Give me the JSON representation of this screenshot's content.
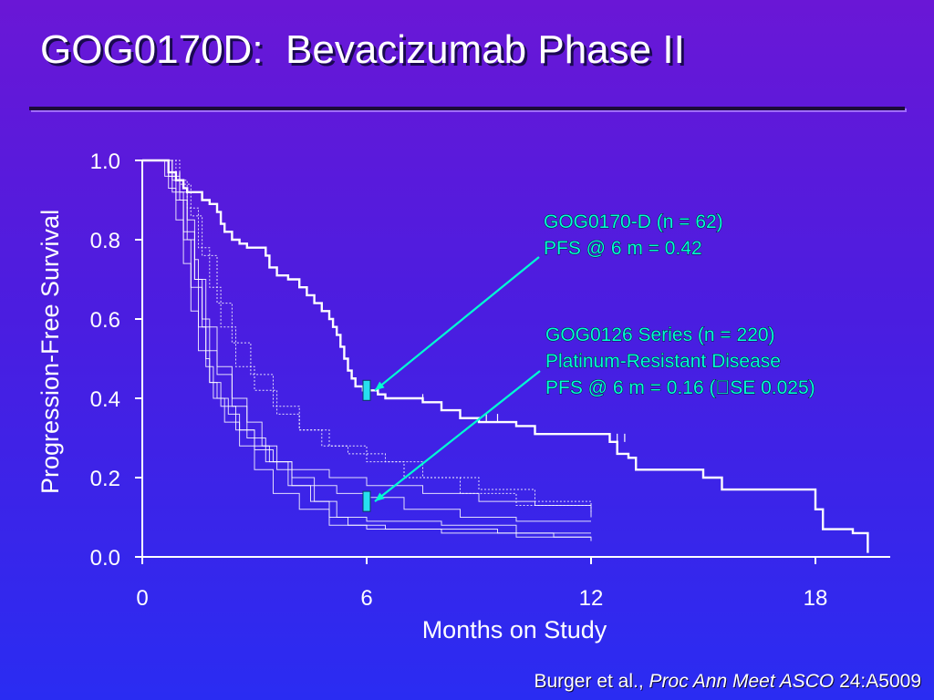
{
  "slide": {
    "title": "GOG0170D:  Bevacizumab Phase II",
    "citation": {
      "authors": "Burger et al.,",
      "journal": "Proc Ann Meet ASCO",
      "ref": "24:A5009"
    }
  },
  "colors": {
    "background_top": "#6a17d6",
    "background_bottom": "#2a2cf2",
    "annotation_text": "#00ffd2",
    "arrow": "#00ffd2",
    "marker": "#27e0f0",
    "curve": "#ffffff"
  },
  "chart_data": {
    "type": "line",
    "title": "",
    "xlabel": "Months on Study",
    "ylabel": "Progression-Free Survival",
    "xlim": [
      0,
      20
    ],
    "ylim": [
      0,
      1.0
    ],
    "xticks": [
      0,
      6,
      12,
      18
    ],
    "yticks": [
      0.0,
      0.2,
      0.4,
      0.6,
      0.8,
      1.0
    ],
    "ytick_labels": [
      "0.0",
      "0.2",
      "0.4",
      "0.6",
      "0.8",
      "1.0"
    ],
    "annotations": [
      {
        "lines": [
          "GOG0170-D (n = 62)",
          "PFS @ 6 m = 0.42"
        ],
        "target": [
          6,
          0.42
        ]
      },
      {
        "lines": [
          "GOG0126 Series (n = 220)",
          "Platinum-Resistant Disease",
          "PFS @ 6 m = 0.16 (SE 0.025)"
        ],
        "target": [
          6,
          0.14
        ]
      }
    ],
    "series": [
      {
        "role": "GOG0170-D",
        "emphasis": true,
        "points": [
          [
            0,
            1.0
          ],
          [
            0.6,
            1.0
          ],
          [
            0.7,
            0.97
          ],
          [
            0.9,
            0.95
          ],
          [
            1.1,
            0.93
          ],
          [
            1.2,
            0.92
          ],
          [
            1.5,
            0.92
          ],
          [
            1.6,
            0.9
          ],
          [
            1.8,
            0.89
          ],
          [
            2.0,
            0.87
          ],
          [
            2.1,
            0.84
          ],
          [
            2.2,
            0.82
          ],
          [
            2.4,
            0.8
          ],
          [
            2.6,
            0.79
          ],
          [
            2.8,
            0.78
          ],
          [
            3.3,
            0.76
          ],
          [
            3.4,
            0.73
          ],
          [
            3.6,
            0.71
          ],
          [
            3.9,
            0.7
          ],
          [
            4.2,
            0.68
          ],
          [
            4.4,
            0.66
          ],
          [
            4.6,
            0.64
          ],
          [
            4.8,
            0.62
          ],
          [
            5.0,
            0.6
          ],
          [
            5.1,
            0.58
          ],
          [
            5.2,
            0.56
          ],
          [
            5.3,
            0.53
          ],
          [
            5.4,
            0.5
          ],
          [
            5.5,
            0.47
          ],
          [
            5.6,
            0.45
          ],
          [
            5.7,
            0.43
          ],
          [
            5.9,
            0.42
          ],
          [
            6.2,
            0.42
          ],
          [
            6.3,
            0.41
          ],
          [
            6.5,
            0.4
          ],
          [
            7.5,
            0.39
          ],
          [
            8.0,
            0.37
          ],
          [
            8.5,
            0.35
          ],
          [
            9.0,
            0.34
          ],
          [
            10.0,
            0.33
          ],
          [
            10.5,
            0.31
          ],
          [
            12.5,
            0.29
          ],
          [
            12.7,
            0.26
          ],
          [
            13.0,
            0.25
          ],
          [
            13.2,
            0.22
          ],
          [
            15.0,
            0.2
          ],
          [
            15.5,
            0.17
          ],
          [
            17.9,
            0.17
          ],
          [
            18.0,
            0.12
          ],
          [
            18.2,
            0.07
          ],
          [
            19.0,
            0.06
          ],
          [
            19.4,
            0.05
          ],
          [
            19.4,
            0.01
          ]
        ],
        "censors": [
          [
            1.0,
            0.95
          ],
          [
            7.5,
            0.39
          ],
          [
            8.5,
            0.35
          ],
          [
            9.2,
            0.34
          ],
          [
            9.5,
            0.34
          ],
          [
            10.5,
            0.31
          ],
          [
            12.5,
            0.29
          ],
          [
            12.7,
            0.29
          ],
          [
            12.9,
            0.29
          ]
        ]
      },
      {
        "role": "GOG0126",
        "dash": false,
        "points": [
          [
            0,
            1.0
          ],
          [
            0.7,
            0.96
          ],
          [
            1.0,
            0.92
          ],
          [
            1.2,
            0.85
          ],
          [
            1.4,
            0.75
          ],
          [
            1.5,
            0.68
          ],
          [
            1.6,
            0.58
          ],
          [
            1.7,
            0.5
          ],
          [
            1.8,
            0.44
          ],
          [
            2.0,
            0.4
          ],
          [
            2.3,
            0.36
          ],
          [
            2.6,
            0.32
          ],
          [
            3.0,
            0.28
          ],
          [
            3.4,
            0.24
          ],
          [
            4.0,
            0.2
          ],
          [
            4.6,
            0.18
          ],
          [
            5.2,
            0.16
          ],
          [
            6.0,
            0.15
          ],
          [
            7.0,
            0.12
          ],
          [
            8.5,
            0.1
          ],
          [
            10.0,
            0.09
          ],
          [
            12.0,
            0.09
          ]
        ]
      },
      {
        "role": "GOG0126",
        "dash": false,
        "points": [
          [
            0,
            1.0
          ],
          [
            0.8,
            0.95
          ],
          [
            1.0,
            0.9
          ],
          [
            1.2,
            0.8
          ],
          [
            1.4,
            0.7
          ],
          [
            1.6,
            0.6
          ],
          [
            1.8,
            0.52
          ],
          [
            2.0,
            0.46
          ],
          [
            2.4,
            0.4
          ],
          [
            2.8,
            0.34
          ],
          [
            3.2,
            0.28
          ],
          [
            3.6,
            0.22
          ],
          [
            4.0,
            0.18
          ],
          [
            4.6,
            0.14
          ],
          [
            5.2,
            0.1
          ],
          [
            6.0,
            0.09
          ],
          [
            8.0,
            0.08
          ],
          [
            10.0,
            0.06
          ],
          [
            12.0,
            0.06
          ]
        ]
      },
      {
        "role": "GOG0126",
        "dash": true,
        "points": [
          [
            0,
            1.0
          ],
          [
            0.9,
            0.95
          ],
          [
            1.2,
            0.88
          ],
          [
            1.5,
            0.78
          ],
          [
            1.8,
            0.68
          ],
          [
            2.1,
            0.58
          ],
          [
            2.5,
            0.48
          ],
          [
            3.0,
            0.42
          ],
          [
            3.6,
            0.36
          ],
          [
            4.2,
            0.32
          ],
          [
            4.8,
            0.28
          ],
          [
            5.5,
            0.26
          ],
          [
            6.5,
            0.24
          ],
          [
            7.5,
            0.2
          ],
          [
            9.0,
            0.17
          ],
          [
            10.5,
            0.14
          ],
          [
            12.0,
            0.12
          ]
        ]
      },
      {
        "role": "GOG0126",
        "dash": false,
        "points": [
          [
            0,
            1.0
          ],
          [
            0.6,
            0.96
          ],
          [
            0.9,
            0.9
          ],
          [
            1.1,
            0.8
          ],
          [
            1.3,
            0.68
          ],
          [
            1.5,
            0.58
          ],
          [
            1.7,
            0.48
          ],
          [
            1.9,
            0.4
          ],
          [
            2.2,
            0.34
          ],
          [
            2.6,
            0.28
          ],
          [
            3.0,
            0.22
          ],
          [
            3.5,
            0.16
          ],
          [
            4.2,
            0.12
          ],
          [
            5.0,
            0.08
          ],
          [
            6.0,
            0.07
          ],
          [
            8.0,
            0.06
          ],
          [
            10.0,
            0.05
          ],
          [
            12.0,
            0.05
          ]
        ]
      },
      {
        "role": "GOG0126",
        "dash": true,
        "points": [
          [
            0,
            1.0
          ],
          [
            1.0,
            0.94
          ],
          [
            1.3,
            0.86
          ],
          [
            1.6,
            0.76
          ],
          [
            2.0,
            0.64
          ],
          [
            2.4,
            0.54
          ],
          [
            2.9,
            0.46
          ],
          [
            3.5,
            0.38
          ],
          [
            4.2,
            0.32
          ],
          [
            5.0,
            0.28
          ],
          [
            6.0,
            0.24
          ],
          [
            7.0,
            0.2
          ],
          [
            8.5,
            0.16
          ],
          [
            10.0,
            0.13
          ],
          [
            12.0,
            0.11
          ]
        ]
      },
      {
        "role": "GOG0126",
        "dash": false,
        "points": [
          [
            0,
            1.0
          ],
          [
            0.7,
            0.93
          ],
          [
            0.9,
            0.85
          ],
          [
            1.1,
            0.74
          ],
          [
            1.3,
            0.62
          ],
          [
            1.5,
            0.52
          ],
          [
            1.8,
            0.44
          ],
          [
            2.1,
            0.38
          ],
          [
            2.5,
            0.32
          ],
          [
            3.0,
            0.27
          ],
          [
            3.5,
            0.24
          ],
          [
            4.0,
            0.22
          ],
          [
            5.0,
            0.2
          ],
          [
            6.0,
            0.18
          ],
          [
            7.5,
            0.16
          ],
          [
            9.0,
            0.14
          ],
          [
            10.5,
            0.13
          ],
          [
            12.0,
            0.1
          ]
        ]
      },
      {
        "role": "GOG0126",
        "dash": false,
        "points": [
          [
            0,
            1.0
          ],
          [
            0.8,
            0.92
          ],
          [
            1.1,
            0.82
          ],
          [
            1.4,
            0.7
          ],
          [
            1.7,
            0.58
          ],
          [
            2.0,
            0.48
          ],
          [
            2.4,
            0.38
          ],
          [
            2.8,
            0.3
          ],
          [
            3.3,
            0.24
          ],
          [
            3.9,
            0.18
          ],
          [
            4.5,
            0.14
          ],
          [
            5.0,
            0.1
          ],
          [
            5.5,
            0.08
          ],
          [
            6.5,
            0.07
          ],
          [
            8.0,
            0.07
          ],
          [
            9.5,
            0.06
          ],
          [
            11.0,
            0.05
          ],
          [
            12.0,
            0.04
          ]
        ]
      }
    ]
  }
}
